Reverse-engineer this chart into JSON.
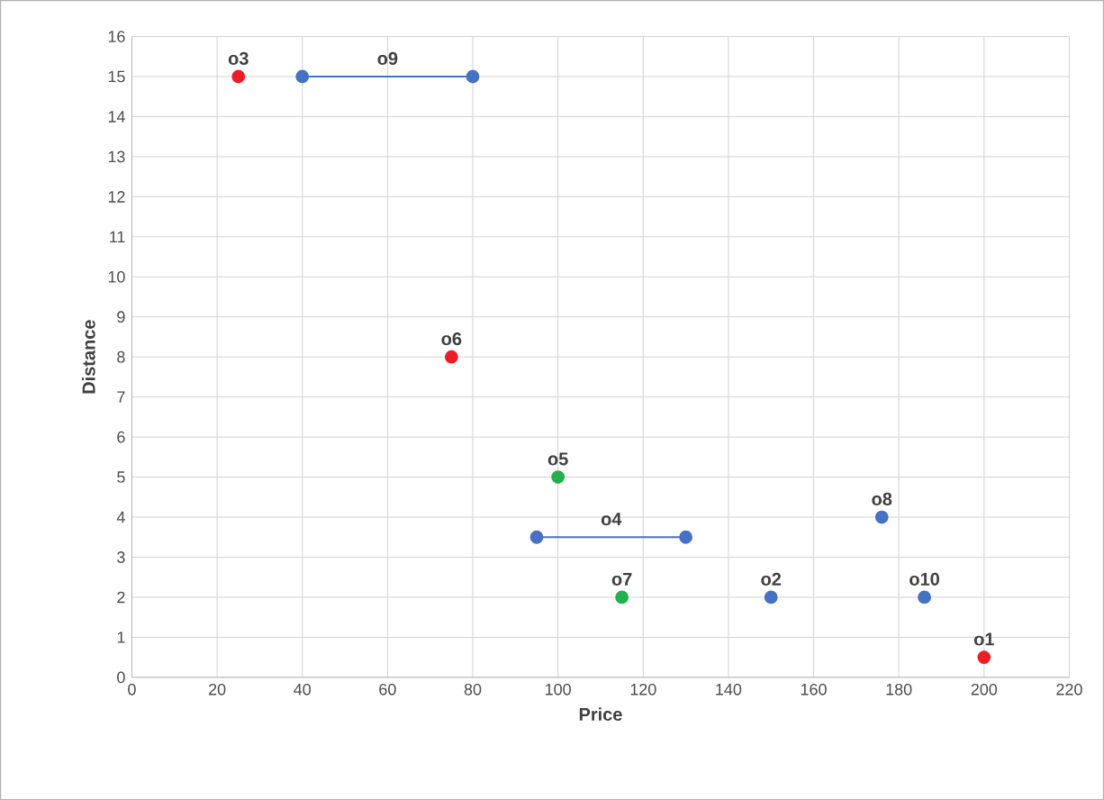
{
  "chart_data": {
    "type": "scatter",
    "xlabel": "Price",
    "ylabel": "Distance",
    "xlim": [
      0,
      220
    ],
    "ylim": [
      0,
      16
    ],
    "xticks": [
      0,
      20,
      40,
      60,
      80,
      100,
      120,
      140,
      160,
      180,
      200,
      220
    ],
    "yticks": [
      0,
      1,
      2,
      3,
      4,
      5,
      6,
      7,
      8,
      9,
      10,
      11,
      12,
      13,
      14,
      15,
      16
    ],
    "grid": true,
    "marker": "circle",
    "series": [
      {
        "name": "o1",
        "color": "#ee1c25",
        "x": [
          200
        ],
        "values": [
          0.5
        ]
      },
      {
        "name": "o2",
        "color": "#4472c4",
        "x": [
          150
        ],
        "values": [
          2
        ]
      },
      {
        "name": "o3",
        "color": "#ee1c25",
        "x": [
          25
        ],
        "values": [
          15
        ]
      },
      {
        "name": "o4",
        "color": "#4472c4",
        "type": "line",
        "line_style": "solid",
        "x": [
          95,
          130
        ],
        "values": [
          3.5,
          3.5
        ]
      },
      {
        "name": "o5",
        "color": "#22b14c",
        "x": [
          100
        ],
        "values": [
          5
        ]
      },
      {
        "name": "o6",
        "color": "#ee1c25",
        "x": [
          75
        ],
        "values": [
          8
        ]
      },
      {
        "name": "o7",
        "color": "#22b14c",
        "x": [
          115
        ],
        "values": [
          2
        ]
      },
      {
        "name": "o8",
        "color": "#4472c4",
        "x": [
          176
        ],
        "values": [
          4
        ]
      },
      {
        "name": "o9",
        "color": "#4472c4",
        "type": "line",
        "line_style": "solid",
        "x": [
          40,
          80
        ],
        "values": [
          15,
          15
        ]
      },
      {
        "name": "o10",
        "color": "#4472c4",
        "x": [
          186
        ],
        "values": [
          2
        ]
      }
    ]
  }
}
